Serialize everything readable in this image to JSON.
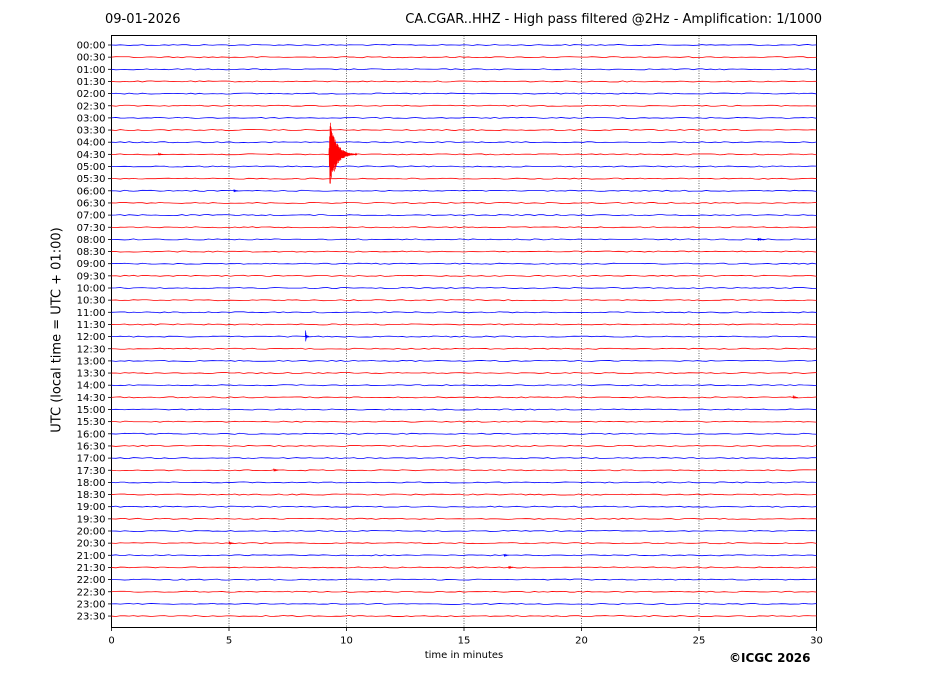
{
  "header": {
    "date": "09-01-2026",
    "title": "CA.CGAR..HHZ - High pass filtered @2Hz - Amplification: 1/1000"
  },
  "footer": {
    "copyright": "©ICGC 2026"
  },
  "chart_data": {
    "type": "line",
    "subtype": "helicorder",
    "xlabel": "time in minutes",
    "ylabel": "UTC (local time = UTC + 01:00)",
    "xlim": [
      0,
      30
    ],
    "x_ticks": [
      "0",
      "5",
      "10",
      "15",
      "20",
      "25",
      "30"
    ],
    "x_tick_values": [
      0,
      5,
      10,
      15,
      20,
      25,
      30
    ],
    "y_tick_labels": [
      "00:00",
      "00:30",
      "01:00",
      "01:30",
      "02:00",
      "02:30",
      "03:00",
      "03:30",
      "04:00",
      "04:30",
      "05:00",
      "05:30",
      "06:00",
      "06:30",
      "07:00",
      "07:30",
      "08:00",
      "08:30",
      "09:00",
      "09:30",
      "10:00",
      "10:30",
      "11:00",
      "11:30",
      "12:00",
      "12:30",
      "13:00",
      "13:30",
      "14:00",
      "14:30",
      "15:00",
      "15:30",
      "16:00",
      "16:30",
      "17:00",
      "17:30",
      "18:00",
      "18:30",
      "19:00",
      "19:30",
      "20:00",
      "20:30",
      "21:00",
      "21:30",
      "22:00",
      "22:30",
      "23:00",
      "23:30"
    ],
    "trace_colors": [
      "#0000ff",
      "#ff0000"
    ],
    "vertical_grid": "dotted at each x tick",
    "events": [
      {
        "trace": "04:30",
        "minute": 9.25,
        "amplitude": "large",
        "duration_min": 1.2
      },
      {
        "trace": "12:00",
        "minute": 8.25,
        "amplitude": "medium",
        "duration_min": 0.15
      },
      {
        "trace": "08:00",
        "minute": 27.5,
        "amplitude": "small",
        "duration_min": 0.3
      },
      {
        "trace": "17:30",
        "minute": 6.9,
        "amplitude": "small",
        "duration_min": 0.2
      },
      {
        "trace": "21:00",
        "minute": 16.7,
        "amplitude": "small",
        "duration_min": 0.2
      },
      {
        "trace": "21:30",
        "minute": 16.9,
        "amplitude": "small",
        "duration_min": 0.2
      },
      {
        "trace": "04:30",
        "minute": 2.0,
        "amplitude": "small",
        "duration_min": 0.2
      },
      {
        "trace": "06:00",
        "minute": 5.2,
        "amplitude": "small",
        "duration_min": 0.2
      },
      {
        "trace": "14:30",
        "minute": 29.0,
        "amplitude": "small",
        "duration_min": 0.2
      },
      {
        "trace": "20:30",
        "minute": 5.0,
        "amplitude": "small",
        "duration_min": 0.2
      }
    ]
  }
}
